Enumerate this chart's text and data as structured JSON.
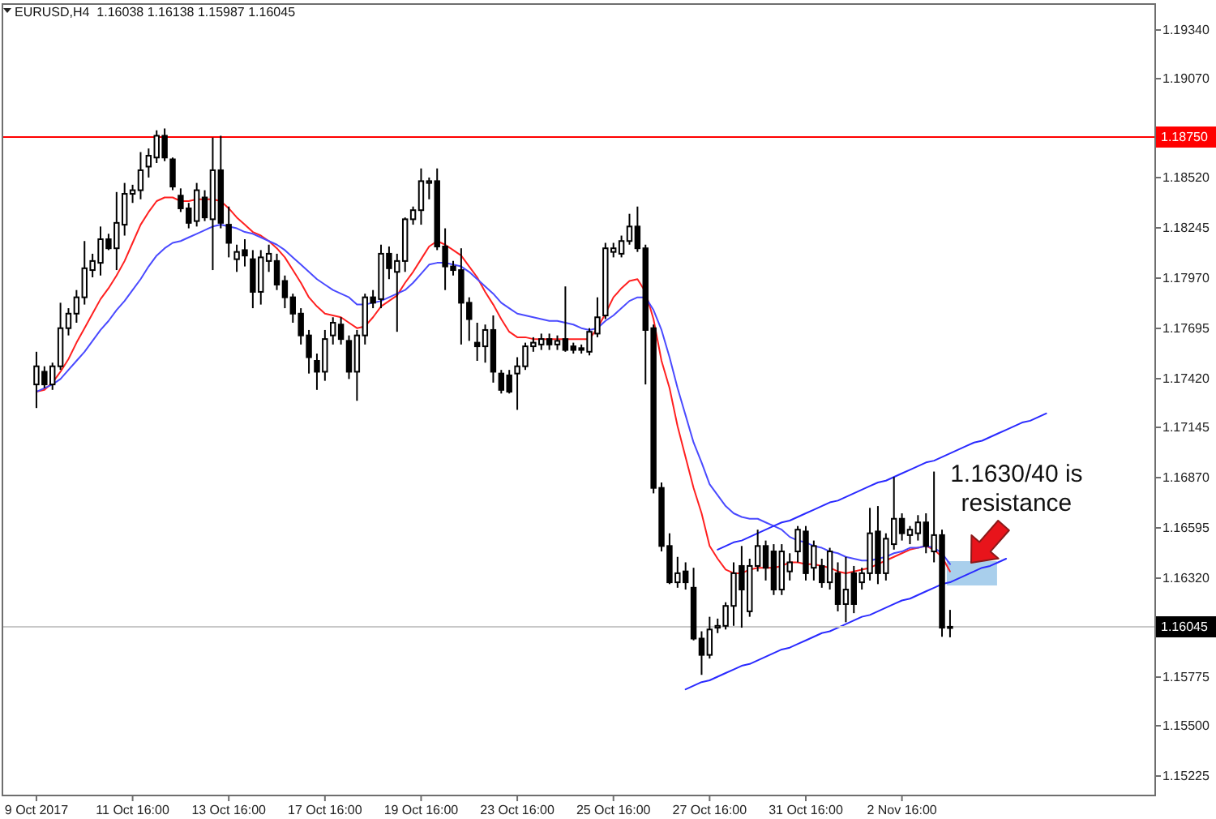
{
  "chart_data": {
    "type": "candlestick",
    "title": "EURUSD,H4  1.16038 1.16138 1.15987 1.16045",
    "categories": [
      "9 Oct 2017",
      null,
      null,
      null,
      null,
      null,
      null,
      null,
      null,
      null,
      null,
      null,
      "11 Oct 16:00",
      null,
      null,
      null,
      null,
      null,
      null,
      null,
      null,
      null,
      null,
      null,
      "13 Oct 16:00",
      null,
      null,
      null,
      null,
      null,
      null,
      null,
      null,
      null,
      null,
      null,
      "17 Oct 16:00",
      null,
      null,
      null,
      null,
      null,
      null,
      null,
      null,
      null,
      null,
      null,
      "19 Oct 16:00",
      null,
      null,
      null,
      null,
      null,
      null,
      null,
      null,
      null,
      null,
      null,
      "23 Oct 16:00",
      null,
      null,
      null,
      null,
      null,
      null,
      null,
      null,
      null,
      null,
      null,
      "25 Oct 16:00",
      null,
      null,
      null,
      null,
      null,
      null,
      null,
      null,
      null,
      null,
      null,
      "27 Oct 16:00",
      null,
      null,
      null,
      null,
      null,
      null,
      null,
      null,
      null,
      null,
      null,
      "31 Oct 16:00",
      null,
      null,
      null,
      null,
      null,
      null,
      null,
      null,
      null,
      null,
      null,
      "2 Nov 16:00",
      null,
      null,
      null,
      null,
      null,
      null,
      null,
      null,
      null,
      null,
      null,
      null,
      null,
      null,
      null,
      null,
      null,
      null,
      null,
      null,
      null,
      null,
      null,
      null,
      null,
      null,
      null,
      null,
      null,
      null,
      null
    ],
    "ohlc": [
      [
        1.1738,
        1.1756,
        1.1725,
        1.1748
      ],
      [
        1.1745,
        1.1748,
        1.1736,
        1.1738
      ],
      [
        1.1738,
        1.175,
        1.1735,
        1.1748
      ],
      [
        1.1748,
        1.1783,
        1.1746,
        1.1769
      ],
      [
        1.1769,
        1.178,
        1.1765,
        1.1777
      ],
      [
        1.1777,
        1.179,
        1.1772,
        1.1786
      ],
      [
        1.1786,
        1.1817,
        1.1782,
        1.1802
      ],
      [
        1.1801,
        1.181,
        1.1797,
        1.1806
      ],
      [
        1.1805,
        1.1825,
        1.1798,
        1.1818
      ],
      [
        1.1818,
        1.1821,
        1.1812,
        1.1813
      ],
      [
        1.1813,
        1.1844,
        1.1801,
        1.1827
      ],
      [
        1.1826,
        1.1849,
        1.182,
        1.1843
      ],
      [
        1.1843,
        1.1848,
        1.1838,
        1.1845
      ],
      [
        1.1845,
        1.1866,
        1.184,
        1.1856
      ],
      [
        1.1858,
        1.1868,
        1.1852,
        1.1864
      ],
      [
        1.1863,
        1.1878,
        1.186,
        1.1875
      ],
      [
        1.1875,
        1.1879,
        1.1861,
        1.1863
      ],
      [
        1.1862,
        1.1863,
        1.1845,
        1.1847
      ],
      [
        1.1842,
        1.1846,
        1.1833,
        1.1835
      ],
      [
        1.1835,
        1.1838,
        1.1824,
        1.1827
      ],
      [
        1.1828,
        1.1849,
        1.1825,
        1.1845
      ],
      [
        1.1841,
        1.1845,
        1.1828,
        1.183
      ],
      [
        1.1829,
        1.1874,
        1.1801,
        1.1856
      ],
      [
        1.1856,
        1.1875,
        1.1824,
        1.1827
      ],
      [
        1.1826,
        1.1836,
        1.1808,
        1.1816
      ],
      [
        1.1807,
        1.1815,
        1.18,
        1.1811
      ],
      [
        1.1812,
        1.1818,
        1.1803,
        1.1809
      ],
      [
        1.1807,
        1.1812,
        1.178,
        1.1789
      ],
      [
        1.1789,
        1.1812,
        1.1782,
        1.1808
      ],
      [
        1.1806,
        1.1815,
        1.18,
        1.181
      ],
      [
        1.1806,
        1.181,
        1.179,
        1.1793
      ],
      [
        1.1795,
        1.1798,
        1.178,
        1.1786
      ],
      [
        1.1786,
        1.1788,
        1.1772,
        1.1777
      ],
      [
        1.1777,
        1.178,
        1.176,
        1.1765
      ],
      [
        1.1765,
        1.1768,
        1.1744,
        1.1753
      ],
      [
        1.1751,
        1.1755,
        1.1735,
        1.1745
      ],
      [
        1.1745,
        1.1768,
        1.174,
        1.1763
      ],
      [
        1.1765,
        1.1775,
        1.176,
        1.1772
      ],
      [
        1.1771,
        1.1775,
        1.176,
        1.1763
      ],
      [
        1.1762,
        1.1765,
        1.1741,
        1.1745
      ],
      [
        1.1745,
        1.1768,
        1.1729,
        1.1765
      ],
      [
        1.1765,
        1.1788,
        1.176,
        1.1786
      ],
      [
        1.1786,
        1.179,
        1.178,
        1.1783
      ],
      [
        1.1785,
        1.1815,
        1.178,
        1.181
      ],
      [
        1.181,
        1.1814,
        1.1796,
        1.1802
      ],
      [
        1.18,
        1.181,
        1.1767,
        1.1806
      ],
      [
        1.1806,
        1.183,
        1.18,
        1.1829
      ],
      [
        1.1829,
        1.1836,
        1.1826,
        1.1834
      ],
      [
        1.1834,
        1.1857,
        1.1826,
        1.185
      ],
      [
        1.1849,
        1.1852,
        1.184,
        1.185
      ],
      [
        1.185,
        1.1857,
        1.1812,
        1.1814
      ],
      [
        1.1814,
        1.1824,
        1.179,
        1.1803
      ],
      [
        1.1803,
        1.1806,
        1.1798,
        1.1801
      ],
      [
        1.1801,
        1.1813,
        1.176,
        1.1783
      ],
      [
        1.1783,
        1.1786,
        1.1762,
        1.1774
      ],
      [
        1.1761,
        1.1772,
        1.1751,
        1.1759
      ],
      [
        1.1759,
        1.1771,
        1.175,
        1.1768
      ],
      [
        1.1768,
        1.1776,
        1.1739,
        1.1745
      ],
      [
        1.1744,
        1.1746,
        1.1733,
        1.1735
      ],
      [
        1.1743,
        1.1746,
        1.1733,
        1.1734
      ],
      [
        1.1744,
        1.1753,
        1.1724,
        1.1748
      ],
      [
        1.1748,
        1.1761,
        1.1746,
        1.1759
      ],
      [
        1.1759,
        1.1764,
        1.1756,
        1.1761
      ],
      [
        1.176,
        1.1766,
        1.1757,
        1.1763
      ],
      [
        1.1763,
        1.1766,
        1.1757,
        1.176
      ],
      [
        1.176,
        1.1765,
        1.1757,
        1.1762
      ],
      [
        1.1763,
        1.1792,
        1.1756,
        1.1757
      ],
      [
        1.1759,
        1.1761,
        1.1755,
        1.1757
      ],
      [
        1.1758,
        1.176,
        1.1755,
        1.1757
      ],
      [
        1.1756,
        1.1769,
        1.1754,
        1.1767
      ],
      [
        1.1766,
        1.1786,
        1.1764,
        1.1775
      ],
      [
        1.1776,
        1.1816,
        1.1774,
        1.1813
      ],
      [
        1.1811,
        1.1816,
        1.1808,
        1.1813
      ],
      [
        1.181,
        1.182,
        1.1808,
        1.1817
      ],
      [
        1.1817,
        1.1832,
        1.1815,
        1.1825
      ],
      [
        1.1825,
        1.1836,
        1.1811,
        1.1813
      ],
      [
        1.1813,
        1.1815,
        1.1738,
        1.1768
      ],
      [
        1.1769,
        1.1771,
        1.1678,
        1.1681
      ],
      [
        1.1681,
        1.1684,
        1.1646,
        1.1649
      ],
      [
        1.1649,
        1.1656,
        1.1628,
        1.1629
      ],
      [
        1.1629,
        1.1643,
        1.1626,
        1.1634
      ],
      [
        1.1635,
        1.164,
        1.1625,
        1.1629
      ],
      [
        1.1626,
        1.1637,
        1.1597,
        1.1598
      ],
      [
        1.1598,
        1.1602,
        1.1578,
        1.1589
      ],
      [
        1.1589,
        1.161,
        1.1587,
        1.1603
      ],
      [
        1.1604,
        1.1609,
        1.1601,
        1.1605
      ],
      [
        1.1605,
        1.1618,
        1.1603,
        1.1616
      ],
      [
        1.1616,
        1.164,
        1.1605,
        1.1634
      ],
      [
        1.1638,
        1.1649,
        1.1604,
        1.1625
      ],
      [
        1.1613,
        1.1642,
        1.161,
        1.1638
      ],
      [
        1.1638,
        1.1658,
        1.1635,
        1.1649
      ],
      [
        1.1649,
        1.1652,
        1.163,
        1.1637
      ],
      [
        1.1646,
        1.165,
        1.1622,
        1.1625
      ],
      [
        1.1625,
        1.165,
        1.1622,
        1.1646
      ],
      [
        1.1635,
        1.1645,
        1.163,
        1.164
      ],
      [
        1.1646,
        1.166,
        1.164,
        1.1658
      ],
      [
        1.1657,
        1.166,
        1.163,
        1.1634
      ],
      [
        1.1637,
        1.1652,
        1.163,
        1.1649
      ],
      [
        1.1638,
        1.1642,
        1.1626,
        1.1629
      ],
      [
        1.1629,
        1.1648,
        1.1625,
        1.1646
      ],
      [
        1.1634,
        1.164,
        1.1613,
        1.1617
      ],
      [
        1.1617,
        1.1643,
        1.1607,
        1.1625
      ],
      [
        1.1634,
        1.1638,
        1.1612,
        1.1617
      ],
      [
        1.1629,
        1.1637,
        1.1625,
        1.1634
      ],
      [
        1.1634,
        1.167,
        1.163,
        1.1656
      ],
      [
        1.1657,
        1.1671,
        1.1628,
        1.1634
      ],
      [
        1.1634,
        1.1656,
        1.163,
        1.1653
      ],
      [
        1.165,
        1.1687,
        1.1647,
        1.1664
      ],
      [
        1.1664,
        1.1667,
        1.1652,
        1.1656
      ],
      [
        1.1655,
        1.166,
        1.165,
        1.1658
      ],
      [
        1.1656,
        1.1666,
        1.1652,
        1.1662
      ],
      [
        1.1662,
        1.1667,
        1.1645,
        1.1649
      ],
      [
        1.1646,
        1.169,
        1.164,
        1.1655
      ],
      [
        1.1655,
        1.1658,
        1.1599,
        1.1604
      ],
      [
        1.16038,
        1.16138,
        1.15987,
        1.16045
      ],
      null,
      null,
      null,
      null,
      null,
      null,
      null,
      null,
      null,
      null,
      null,
      null,
      null,
      null,
      null,
      null,
      null,
      null,
      null,
      null,
      null,
      null,
      null,
      null,
      null
    ],
    "series": [
      {
        "type": "line",
        "color": "#ff2020",
        "values": [
          1.1734,
          1.1735,
          1.1739,
          1.1745,
          1.1752,
          1.1761,
          1.1769,
          1.1777,
          1.1785,
          1.1791,
          1.1798,
          1.1806,
          1.1816,
          1.1826,
          1.1833,
          1.1839,
          1.1841,
          1.1841,
          1.1839,
          1.1839,
          1.184,
          1.184,
          1.184,
          1.1839,
          1.1835,
          1.183,
          1.1826,
          1.1822,
          1.182,
          1.1817,
          1.1813,
          1.1808,
          1.1801,
          1.1794,
          1.1786,
          1.1781,
          1.1777,
          1.1776,
          1.1775,
          1.1772,
          1.1769,
          1.177,
          1.1775,
          1.1781,
          1.1784,
          1.1787,
          1.1794,
          1.18,
          1.1807,
          1.1814,
          1.1817,
          1.1815,
          1.1812,
          1.1809,
          1.1803,
          1.1797,
          1.1789,
          1.1782,
          1.1774,
          1.1767,
          1.1764,
          1.1764,
          1.1763,
          1.1763,
          1.1763,
          1.1763,
          1.1763,
          1.1763,
          1.1763,
          1.1763,
          1.1769,
          1.1777,
          1.1786,
          1.1791,
          1.1795,
          1.1796,
          1.1789,
          1.1774,
          1.1751,
          1.1736,
          1.1715,
          1.1698,
          1.1681,
          1.1667,
          1.1649,
          1.1642,
          1.1636,
          1.1634,
          1.1634,
          1.1636,
          1.1637,
          1.1637,
          1.1637,
          1.1638,
          1.164,
          1.164,
          1.1639,
          1.1639,
          1.1638,
          1.1637,
          1.1635,
          1.1634,
          1.1635,
          1.1636,
          1.1637,
          1.1639,
          1.1641,
          1.1643,
          1.1645,
          1.1647,
          1.1648,
          1.1649,
          1.1647,
          1.1643,
          1.1635,
          null,
          null,
          null,
          null,
          null,
          null,
          null,
          null,
          null,
          null,
          null,
          null,
          null,
          null,
          null,
          null,
          null,
          null,
          null,
          null,
          null,
          null,
          null,
          null,
          null
        ]
      },
      {
        "type": "line",
        "color": "#4a4aff",
        "values": [
          1.1734,
          1.1736,
          1.1738,
          1.1741,
          1.1746,
          1.1751,
          1.1756,
          1.1762,
          1.1768,
          1.1773,
          1.1779,
          1.1784,
          1.179,
          1.1796,
          1.1803,
          1.1809,
          1.1813,
          1.1816,
          1.1817,
          1.1819,
          1.1821,
          1.1823,
          1.1825,
          1.1826,
          1.1825,
          1.1824,
          1.1822,
          1.1821,
          1.1819,
          1.1817,
          1.1815,
          1.1812,
          1.1808,
          1.1804,
          1.18,
          1.1796,
          1.1793,
          1.179,
          1.1788,
          1.1786,
          1.1782,
          1.1782,
          1.1783,
          1.1784,
          1.1786,
          1.1788,
          1.179,
          1.1794,
          1.1799,
          1.1804,
          1.1805,
          1.1805,
          1.1804,
          1.1803,
          1.18,
          1.1796,
          1.1792,
          1.1788,
          1.1783,
          1.178,
          1.1777,
          1.1776,
          1.1775,
          1.1774,
          1.1773,
          1.1773,
          1.1772,
          1.1771,
          1.1769,
          1.1768,
          1.1769,
          1.1773,
          1.1776,
          1.178,
          1.1784,
          1.1786,
          1.1786,
          1.1779,
          1.1768,
          1.1753,
          1.1736,
          1.1721,
          1.1706,
          1.1695,
          1.1683,
          1.1677,
          1.1671,
          1.1667,
          1.1665,
          1.1664,
          1.1664,
          1.1662,
          1.166,
          1.1658,
          1.1654,
          1.1652,
          1.1651,
          1.1649,
          1.1648,
          1.1646,
          1.1645,
          1.1643,
          1.1642,
          1.1641,
          1.1641,
          1.1642,
          1.1643,
          1.1645,
          1.1646,
          1.1648,
          1.1648,
          1.1649,
          1.1648,
          1.1645,
          1.1639,
          null,
          null,
          null,
          null,
          null,
          null,
          null,
          null,
          null,
          null,
          null,
          null,
          null,
          null,
          null,
          null,
          null,
          null,
          null,
          null,
          null,
          null,
          null,
          null,
          null
        ]
      },
      {
        "type": "line",
        "color": "#2a2aff",
        "values": [
          null,
          null,
          null,
          null,
          null,
          null,
          null,
          null,
          null,
          null,
          null,
          null,
          null,
          null,
          null,
          null,
          null,
          null,
          null,
          null,
          null,
          null,
          null,
          null,
          null,
          null,
          null,
          null,
          null,
          null,
          null,
          null,
          null,
          null,
          null,
          null,
          null,
          null,
          null,
          null,
          null,
          null,
          null,
          null,
          null,
          null,
          null,
          null,
          null,
          null,
          null,
          null,
          null,
          null,
          null,
          null,
          null,
          null,
          null,
          null,
          null,
          null,
          null,
          null,
          null,
          null,
          null,
          null,
          null,
          null,
          null,
          null,
          null,
          null,
          null,
          null,
          null,
          null,
          null,
          null,
          null,
          null,
          null,
          null,
          null,
          1.1647,
          1.1649,
          1.1651,
          1.1652,
          1.1654,
          1.1656,
          1.1658,
          1.166,
          1.1662,
          1.1663,
          1.1665,
          1.1667,
          1.1669,
          1.1671,
          1.1673,
          1.1674,
          1.1676,
          1.1678,
          1.168,
          1.1682,
          1.1684,
          1.1685,
          1.1687,
          1.1689,
          1.1691,
          1.1693,
          1.1695,
          1.1696,
          1.1698,
          1.17,
          1.1702,
          1.1704,
          1.1706,
          1.1707,
          1.1709,
          1.1711,
          1.1713,
          1.1715,
          1.1717,
          1.1718,
          1.172,
          1.1722,
          null,
          null,
          null,
          null,
          null,
          null,
          null,
          null,
          null,
          null,
          null,
          null,
          null
        ]
      },
      {
        "type": "line",
        "color": "#2a2aff",
        "values": [
          null,
          null,
          null,
          null,
          null,
          null,
          null,
          null,
          null,
          null,
          null,
          null,
          null,
          null,
          null,
          null,
          null,
          null,
          null,
          null,
          null,
          null,
          null,
          null,
          null,
          null,
          null,
          null,
          null,
          null,
          null,
          null,
          null,
          null,
          null,
          null,
          null,
          null,
          null,
          null,
          null,
          null,
          null,
          null,
          null,
          null,
          null,
          null,
          null,
          null,
          null,
          null,
          null,
          null,
          null,
          null,
          null,
          null,
          null,
          null,
          null,
          null,
          null,
          null,
          null,
          null,
          null,
          null,
          null,
          null,
          null,
          null,
          null,
          null,
          null,
          null,
          null,
          null,
          null,
          null,
          null,
          1.157,
          1.1572,
          1.1574,
          1.1575,
          1.1577,
          1.1579,
          1.1581,
          1.1583,
          1.1584,
          1.1586,
          1.1588,
          1.159,
          1.1592,
          1.1593,
          1.1595,
          1.1597,
          1.1599,
          1.1601,
          1.1602,
          1.1604,
          1.1606,
          1.1608,
          1.161,
          1.1611,
          1.1613,
          1.1615,
          1.1617,
          1.1619,
          1.162,
          1.1622,
          1.1624,
          1.1626,
          1.1628,
          1.1629,
          1.1631,
          1.1633,
          1.1635,
          1.1637,
          1.1638,
          1.164,
          1.1642,
          null,
          null,
          null,
          null,
          null,
          null,
          null,
          null,
          null,
          null,
          null,
          null,
          null,
          null,
          null,
          null,
          null,
          null
        ]
      }
    ],
    "ylim": [
      1.1512,
      1.1948
    ],
    "yticks": [
      {
        "value": 1.1934,
        "label": "1.19340"
      },
      {
        "value": 1.1907,
        "label": "1.19070"
      },
      {
        "value": 1.1852,
        "label": "1.18520"
      },
      1.18245,
      {
        "value": 1.1797,
        "label": "1.17970"
      },
      1.17695,
      {
        "value": 1.1742,
        "label": "1.17420"
      },
      1.17145,
      {
        "value": 1.1687,
        "label": "1.16870"
      },
      1.16595,
      {
        "value": 1.1632,
        "label": "1.16320"
      },
      1.15775,
      {
        "value": 1.155,
        "label": "1.15500"
      },
      1.15225
    ],
    "ref_lines": [
      {
        "axis": "y",
        "value": 1.1875,
        "label": "1.18750",
        "color": "#ff0000"
      },
      {
        "axis": "y",
        "value": 1.16045,
        "label": "1.16045",
        "color": "#c8c8c8"
      }
    ],
    "annotations": [
      "1.1630/40 is\nresistance"
    ]
  }
}
